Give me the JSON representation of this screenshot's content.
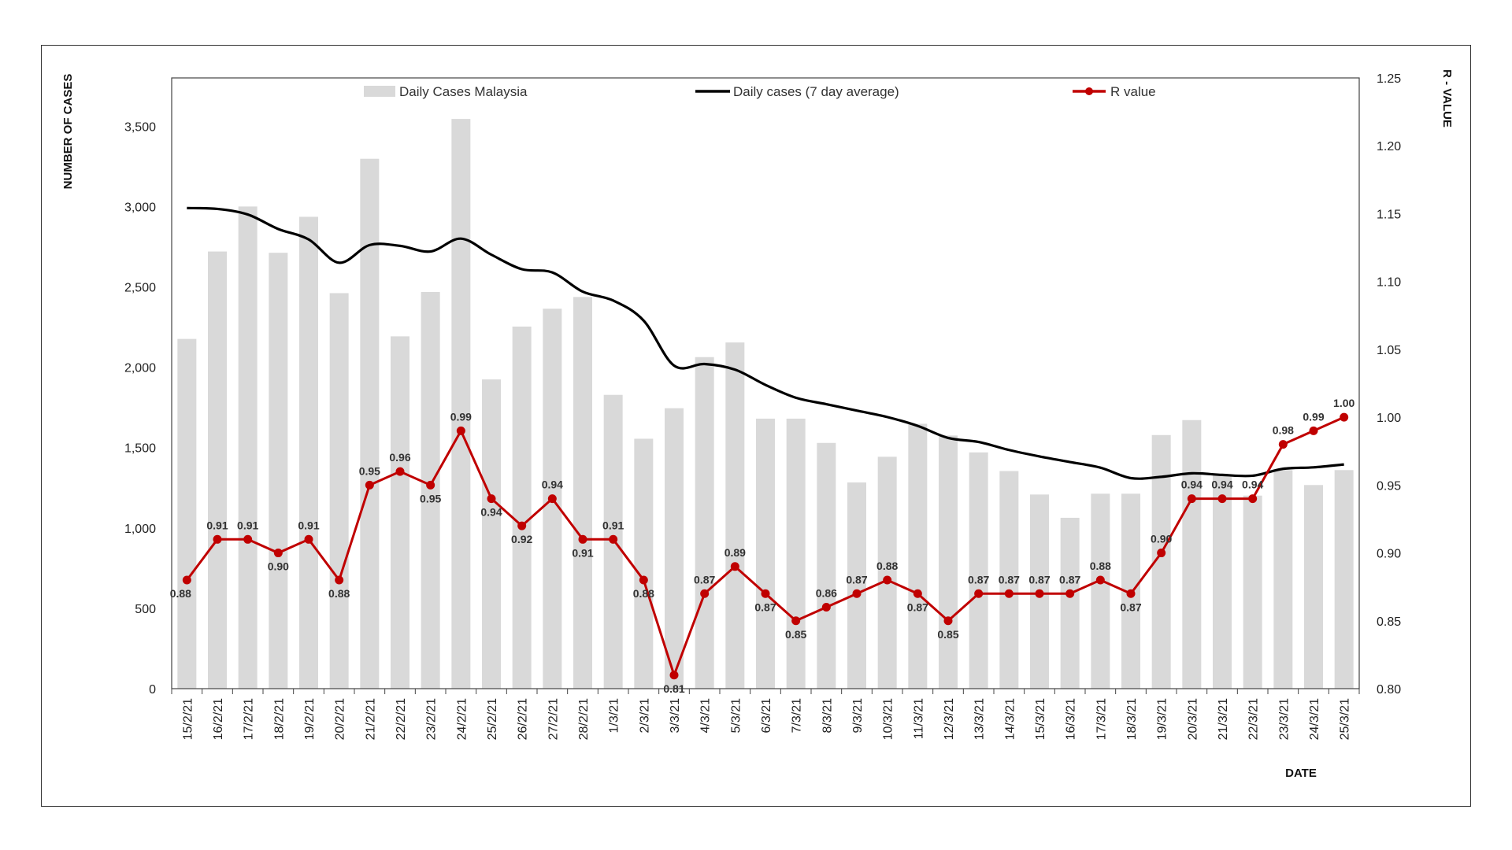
{
  "chart_data": {
    "type": "bar",
    "x_label": "DATE",
    "y_left_label": "NUMBER OF CASES",
    "y_right_label": "R - VALUE",
    "y_left_range": [
      0,
      3800
    ],
    "y_left_ticks": [
      0,
      500,
      1000,
      1500,
      2000,
      2500,
      3000,
      3500
    ],
    "y_left_tick_labels": [
      "0",
      "500",
      "1,000",
      "1,500",
      "2,000",
      "2,500",
      "3,000",
      "3,500"
    ],
    "y_right_range": [
      0.8,
      1.25
    ],
    "y_right_ticks": [
      0.8,
      0.85,
      0.9,
      0.95,
      1.0,
      1.05,
      1.1,
      1.15,
      1.2,
      1.25
    ],
    "y_right_tick_labels": [
      "0.80",
      "0.85",
      "0.90",
      "0.95",
      "1.00",
      "1.05",
      "1.10",
      "1.15",
      "1.20",
      "1.25"
    ],
    "grid": false,
    "legend_position": "top",
    "categories": [
      "15/2/21",
      "16/2/21",
      "17/2/21",
      "18/2/21",
      "19/2/21",
      "20/2/21",
      "21/2/21",
      "22/2/21",
      "23/2/21",
      "24/2/21",
      "25/2/21",
      "26/2/21",
      "27/2/21",
      "28/2/21",
      "1/3/21",
      "2/3/21",
      "3/3/21",
      "4/3/21",
      "5/3/21",
      "6/3/21",
      "7/3/21",
      "8/3/21",
      "9/3/21",
      "10/3/21",
      "11/3/21",
      "12/3/21",
      "13/3/21",
      "14/3/21",
      "15/3/21",
      "16/3/21",
      "17/3/21",
      "18/3/21",
      "19/3/21",
      "20/3/21",
      "21/3/21",
      "22/3/21",
      "23/3/21",
      "24/3/21",
      "25/3/21"
    ],
    "series": [
      {
        "name": "Daily Cases Malaysia",
        "type": "bar",
        "axis": "left",
        "color": "#d9d9d9",
        "values": [
          2176,
          2720,
          3000,
          2712,
          2936,
          2461,
          3297,
          2192,
          2468,
          3545,
          1924,
          2253,
          2364,
          2437,
          1828,
          1555,
          1745,
          2063,
          2154,
          1680,
          1680,
          1529,
          1283,
          1443,
          1648,
          1575,
          1470,
          1354,
          1208,
          1063,
          1213,
          1213,
          1578,
          1671,
          1327,
          1201,
          1360,
          1267,
          1360
        ]
      },
      {
        "name": "Daily cases (7 day average)",
        "type": "line",
        "axis": "left",
        "color": "#000000",
        "values": [
          2990,
          2985,
          2950,
          2860,
          2795,
          2650,
          2760,
          2755,
          2720,
          2800,
          2700,
          2610,
          2590,
          2470,
          2415,
          2290,
          2010,
          2020,
          1985,
          1890,
          1810,
          1770,
          1730,
          1690,
          1635,
          1560,
          1535,
          1485,
          1445,
          1410,
          1375,
          1310,
          1318,
          1340,
          1330,
          1325,
          1368,
          1377,
          1395
        ]
      },
      {
        "name": "R value",
        "type": "line",
        "axis": "right",
        "color": "#c00000",
        "values": [
          0.88,
          0.91,
          0.91,
          0.9,
          0.91,
          0.88,
          0.95,
          0.96,
          0.95,
          0.99,
          0.94,
          0.92,
          0.94,
          0.91,
          0.91,
          0.88,
          0.81,
          0.87,
          0.89,
          0.87,
          0.85,
          0.86,
          0.87,
          0.88,
          0.87,
          0.85,
          0.87,
          0.87,
          0.87,
          0.87,
          0.88,
          0.87,
          0.9,
          0.94,
          0.94,
          0.94,
          0.98,
          0.99,
          1.0
        ],
        "data_labels": [
          "0.88",
          "0.91",
          "0.91",
          "0.90",
          "0.91",
          "0.88",
          "0.95",
          "0.96",
          "0.95",
          "0.99",
          "0.94",
          "0.92",
          "0.94",
          "0.91",
          "0.91",
          "0.88",
          "0.81",
          "0.87",
          "0.89",
          "0.87",
          "0.85",
          "0.86",
          "0.87",
          "0.88",
          "0.87",
          "0.85",
          "0.87",
          "0.87",
          "0.87",
          "0.87",
          "0.88",
          "0.87",
          "0.90",
          "0.94",
          "0.94",
          "0.94",
          "0.98",
          "0.99",
          "1.00"
        ]
      }
    ]
  }
}
